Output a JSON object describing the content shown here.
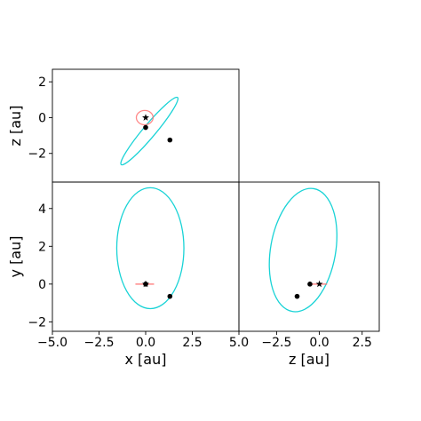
{
  "chart_data": [
    {
      "id": "xz",
      "type": "scatter",
      "xlim": [
        -5.0,
        5.0
      ],
      "ylim": [
        -3.6,
        2.7
      ],
      "yticks": [
        2,
        0,
        -2
      ],
      "ytick_labels": [
        "2",
        "0",
        "−2"
      ],
      "ylabel": "z [au]",
      "xlabel": "",
      "grid": false,
      "orbits": [
        {
          "name": "",
          "color": "#00CED1",
          "type": "ellipse",
          "cx": 0.2,
          "cy": -0.75,
          "rx": 2.35,
          "ry": 0.35,
          "angle_deg": 50,
          "opacity": 0.9
        },
        {
          "name": "",
          "color": "#FF6B6B",
          "type": "ellipse",
          "cx": -0.05,
          "cy": 0.0,
          "rx": 0.45,
          "ry": 0.4,
          "angle_deg": 0,
          "opacity": 0.8
        }
      ],
      "points": [
        {
          "x": 0.0,
          "y": 0.0,
          "marker": "star"
        },
        {
          "x": 0.0,
          "y": -0.55,
          "marker": "dot"
        },
        {
          "x": 1.3,
          "y": -1.25,
          "marker": "dot"
        }
      ]
    },
    {
      "id": "xy",
      "type": "scatter",
      "xlim": [
        -5.0,
        5.0
      ],
      "ylim": [
        -2.5,
        5.4
      ],
      "xticks": [
        -5.0,
        -2.5,
        0.0,
        2.5,
        5.0
      ],
      "xtick_labels": [
        "−5.0",
        "−2.5",
        "0.0",
        "2.5",
        "5.0"
      ],
      "yticks": [
        4,
        2,
        0,
        -2
      ],
      "ytick_labels": [
        "4",
        "2",
        "0",
        "−2"
      ],
      "xlabel": "x [au]",
      "ylabel": "y [au]",
      "grid": false,
      "orbits": [
        {
          "name": "",
          "color": "#00CED1",
          "type": "ellipse",
          "cx": 0.25,
          "cy": 1.9,
          "rx": 1.8,
          "ry": 3.2,
          "angle_deg": 0,
          "opacity": 0.9
        },
        {
          "name": "",
          "color": "#FF6B6B",
          "type": "segment",
          "x1": -0.55,
          "y1": 0.0,
          "x2": 0.45,
          "y2": 0.0,
          "opacity": 0.8
        }
      ],
      "points": [
        {
          "x": 0.0,
          "y": 0.0,
          "marker": "star"
        },
        {
          "x": 0.0,
          "y": 0.0,
          "marker": "dot"
        },
        {
          "x": 1.3,
          "y": -0.65,
          "marker": "dot"
        }
      ]
    },
    {
      "id": "zy",
      "type": "scatter",
      "xlim": [
        -4.7,
        3.5
      ],
      "ylim": [
        -2.5,
        5.4
      ],
      "xticks": [
        -2.5,
        0.0,
        2.5
      ],
      "xtick_labels": [
        "−2.5",
        "0.0",
        "2.5"
      ],
      "xlabel": "z [au]",
      "ylabel": "",
      "grid": false,
      "orbits": [
        {
          "name": "",
          "color": "#00CED1",
          "type": "ellipse",
          "cx": -0.95,
          "cy": 1.8,
          "rx": 1.9,
          "ry": 3.3,
          "angle_deg": -10,
          "opacity": 0.9
        },
        {
          "name": "",
          "color": "#FF6B6B",
          "type": "segment",
          "x1": -0.45,
          "y1": 0.0,
          "x2": 0.45,
          "y2": 0.0,
          "opacity": 0.8
        }
      ],
      "points": [
        {
          "x": 0.0,
          "y": 0.0,
          "marker": "star"
        },
        {
          "x": -0.55,
          "y": 0.0,
          "marker": "dot"
        },
        {
          "x": -1.3,
          "y": -0.65,
          "marker": "dot"
        }
      ]
    }
  ]
}
